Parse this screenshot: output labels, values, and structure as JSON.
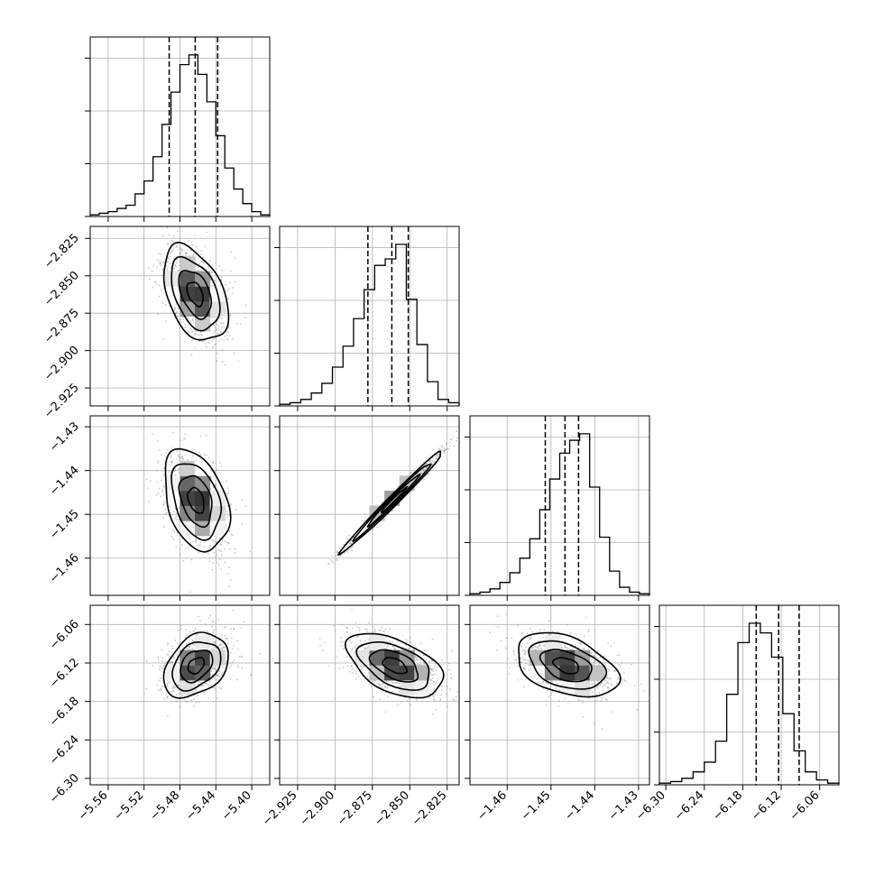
{
  "chart_data": {
    "type": "corner",
    "grid": true,
    "parameters": [
      {
        "range": [
          -5.58,
          -5.38
        ],
        "ticks": [
          -5.56,
          -5.52,
          -5.48,
          -5.44,
          -5.4
        ],
        "tick_labels": [
          "−5.56",
          "−5.52",
          "−5.48",
          "−5.44",
          "−5.40"
        ],
        "quantiles": [
          -5.492,
          -5.463,
          -5.438
        ]
      },
      {
        "range": [
          -2.937,
          -2.817
        ],
        "ticks": [
          -2.925,
          -2.9,
          -2.875,
          -2.85,
          -2.825
        ],
        "tick_labels": [
          "−2.925",
          "−2.900",
          "−2.875",
          "−2.850",
          "−2.825"
        ],
        "quantiles": [
          -2.878,
          -2.862,
          -2.851
        ]
      },
      {
        "range": [
          -1.4685,
          -1.4275
        ],
        "ticks": [
          -1.46,
          -1.45,
          -1.44,
          -1.43
        ],
        "tick_labels": [
          "−1.46",
          "−1.45",
          "−1.44",
          "−1.43"
        ],
        "quantiles": [
          -1.4513,
          -1.4468,
          -1.4437
        ]
      },
      {
        "range": [
          -6.31,
          -6.03
        ],
        "ticks": [
          -6.3,
          -6.24,
          -6.18,
          -6.12,
          -6.06
        ],
        "tick_labels": [
          "−6.30",
          "−6.24",
          "−6.18",
          "−6.12",
          "−6.06"
        ],
        "quantiles": [
          -6.159,
          -6.124,
          -6.092
        ]
      }
    ],
    "histograms": [
      {
        "counts": [
          1,
          2,
          3,
          5,
          7,
          14,
          22,
          37,
          57,
          77,
          94,
          100,
          88,
          71,
          50,
          30,
          17,
          8,
          3,
          1
        ]
      },
      {
        "counts": [
          1,
          2,
          4,
          8,
          14,
          24,
          37,
          54,
          72,
          87,
          91,
          100,
          66,
          38,
          15,
          4,
          2
        ]
      },
      {
        "counts": [
          1,
          2,
          4,
          8,
          14,
          23,
          35,
          53,
          72,
          88,
          96,
          100,
          67,
          36,
          15,
          5,
          2,
          1
        ]
      },
      {
        "counts": [
          1,
          2,
          4,
          8,
          14,
          27,
          56,
          88,
          100,
          94,
          79,
          44,
          21,
          8,
          3,
          1
        ]
      }
    ],
    "pairs": [
      {
        "row": 1,
        "col": 0,
        "center": [
          -5.463,
          -2.862
        ],
        "sigma": [
          0.018,
          0.016
        ],
        "rho": -0.42
      },
      {
        "row": 2,
        "col": 0,
        "center": [
          -5.462,
          -1.4468
        ],
        "sigma": [
          0.018,
          0.0058
        ],
        "rho": -0.35
      },
      {
        "row": 2,
        "col": 1,
        "center": [
          -2.861,
          -1.4468
        ],
        "sigma": [
          0.017,
          0.0058
        ],
        "rho": 0.99
      },
      {
        "row": 3,
        "col": 0,
        "center": [
          -5.462,
          -6.124
        ],
        "sigma": [
          0.018,
          0.025
        ],
        "rho": 0.34
      },
      {
        "row": 3,
        "col": 1,
        "center": [
          -2.86,
          -6.124
        ],
        "sigma": [
          0.016,
          0.025
        ],
        "rho": -0.5
      },
      {
        "row": 3,
        "col": 2,
        "center": [
          -1.4465,
          -6.124
        ],
        "sigma": [
          0.0058,
          0.025
        ],
        "rho": -0.4
      }
    ],
    "contour_levels_sigma": [
      0.5,
      1.0,
      1.5,
      2.0
    ],
    "colors": {
      "line": "#000000",
      "grid": "#b0b0b0",
      "points": "#9a9a9a",
      "density_dark": "#000000"
    }
  }
}
